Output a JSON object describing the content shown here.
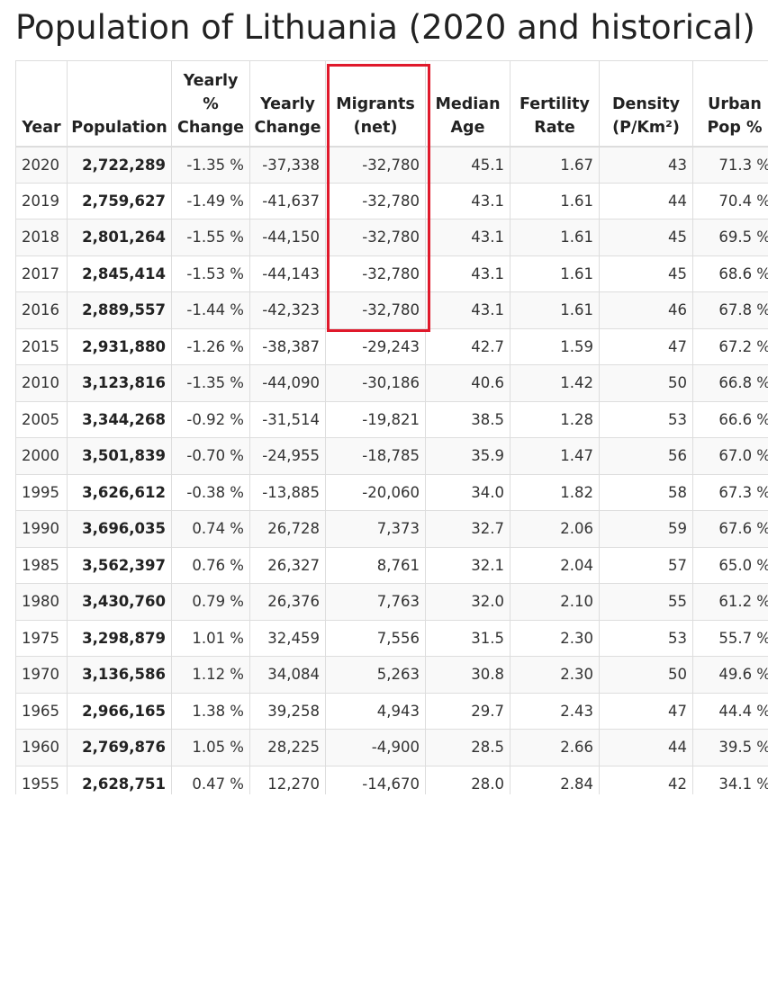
{
  "title": "Population of Lithuania (2020 and historical)",
  "columns": [
    {
      "key": "year",
      "label": "Year"
    },
    {
      "key": "population",
      "label": "Population"
    },
    {
      "key": "yearly_pct_change",
      "label": "Yearly % Change"
    },
    {
      "key": "yearly_change",
      "label": "Yearly Change"
    },
    {
      "key": "migrants",
      "label": "Migrants (net)"
    },
    {
      "key": "median_age",
      "label": "Median Age"
    },
    {
      "key": "fertility_rate",
      "label": "Fertility Rate"
    },
    {
      "key": "density",
      "label": "Density (P/Km²)"
    },
    {
      "key": "urban_pop",
      "label": "Urban Pop %"
    }
  ],
  "rows": [
    [
      "2020",
      "2,722,289",
      "-1.35 %",
      "-37,338",
      "-32,780",
      "45.1",
      "1.67",
      "43",
      "71.3 %"
    ],
    [
      "2019",
      "2,759,627",
      "-1.49 %",
      "-41,637",
      "-32,780",
      "43.1",
      "1.61",
      "44",
      "70.4 %"
    ],
    [
      "2018",
      "2,801,264",
      "-1.55 %",
      "-44,150",
      "-32,780",
      "43.1",
      "1.61",
      "45",
      "69.5 %"
    ],
    [
      "2017",
      "2,845,414",
      "-1.53 %",
      "-44,143",
      "-32,780",
      "43.1",
      "1.61",
      "45",
      "68.6 %"
    ],
    [
      "2016",
      "2,889,557",
      "-1.44 %",
      "-42,323",
      "-32,780",
      "43.1",
      "1.61",
      "46",
      "67.8 %"
    ],
    [
      "2015",
      "2,931,880",
      "-1.26 %",
      "-38,387",
      "-29,243",
      "42.7",
      "1.59",
      "47",
      "67.2 %"
    ],
    [
      "2010",
      "3,123,816",
      "-1.35 %",
      "-44,090",
      "-30,186",
      "40.6",
      "1.42",
      "50",
      "66.8 %"
    ],
    [
      "2005",
      "3,344,268",
      "-0.92 %",
      "-31,514",
      "-19,821",
      "38.5",
      "1.28",
      "53",
      "66.6 %"
    ],
    [
      "2000",
      "3,501,839",
      "-0.70 %",
      "-24,955",
      "-18,785",
      "35.9",
      "1.47",
      "56",
      "67.0 %"
    ],
    [
      "1995",
      "3,626,612",
      "-0.38 %",
      "-13,885",
      "-20,060",
      "34.0",
      "1.82",
      "58",
      "67.3 %"
    ],
    [
      "1990",
      "3,696,035",
      "0.74 %",
      "26,728",
      "7,373",
      "32.7",
      "2.06",
      "59",
      "67.6 %"
    ],
    [
      "1985",
      "3,562,397",
      "0.76 %",
      "26,327",
      "8,761",
      "32.1",
      "2.04",
      "57",
      "65.0 %"
    ],
    [
      "1980",
      "3,430,760",
      "0.79 %",
      "26,376",
      "7,763",
      "32.0",
      "2.10",
      "55",
      "61.2 %"
    ],
    [
      "1975",
      "3,298,879",
      "1.01 %",
      "32,459",
      "7,556",
      "31.5",
      "2.30",
      "53",
      "55.7 %"
    ],
    [
      "1970",
      "3,136,586",
      "1.12 %",
      "34,084",
      "5,263",
      "30.8",
      "2.30",
      "50",
      "49.6 %"
    ],
    [
      "1965",
      "2,966,165",
      "1.38 %",
      "39,258",
      "4,943",
      "29.7",
      "2.43",
      "47",
      "44.4 %"
    ],
    [
      "1960",
      "2,769,876",
      "1.05 %",
      "28,225",
      "-4,900",
      "28.5",
      "2.66",
      "44",
      "39.5 %"
    ],
    [
      "1955",
      "2,628,751",
      "0.47 %",
      "12,270",
      "-14,670",
      "28.0",
      "2.84",
      "42",
      "34.1 %"
    ]
  ],
  "highlight": {
    "column": "Migrants (net)",
    "rows": [
      "2020",
      "2019",
      "2018",
      "2017",
      "2016"
    ],
    "color": "#e0192b"
  },
  "colors": {
    "text": "#222222",
    "border": "#dddddd",
    "row_alt": "#f9f9f9",
    "highlight": "#e0192b"
  }
}
